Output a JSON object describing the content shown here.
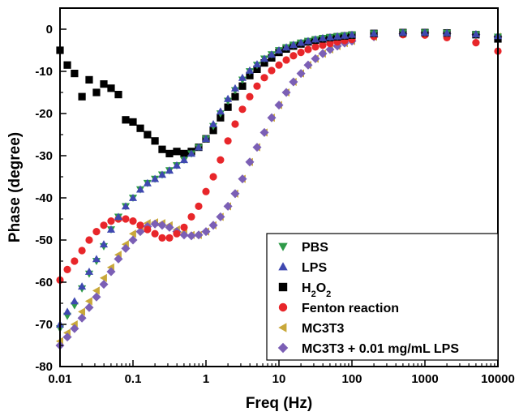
{
  "chart_data": {
    "type": "scatter",
    "title": "",
    "xlabel": "Freq (Hz)",
    "ylabel": "Phase (degree)",
    "x_scale": "log",
    "xlim": [
      0.01,
      10000
    ],
    "ylim": [
      -80,
      5
    ],
    "x_ticks": [
      "0.01",
      "0.1",
      "1",
      "10",
      "100",
      "1000",
      "10000"
    ],
    "y_ticks": [
      "0",
      "-10",
      "-20",
      "-30",
      "-40",
      "-50",
      "-60",
      "-70",
      "-80"
    ],
    "legend_position": "bottom-right",
    "grid": false,
    "series": [
      {
        "name": "PBS",
        "marker": "triangle-down",
        "color": "#2e9a48",
        "x": [
          0.01,
          0.0126,
          0.0158,
          0.02,
          0.0251,
          0.0316,
          0.0398,
          0.0501,
          0.0631,
          0.0794,
          0.1,
          0.126,
          0.158,
          0.2,
          0.251,
          0.316,
          0.398,
          0.501,
          0.631,
          0.794,
          1,
          1.26,
          1.58,
          2,
          2.51,
          3.16,
          3.98,
          5.01,
          6.31,
          7.94,
          10,
          12.6,
          15.8,
          20,
          25.1,
          31.6,
          39.8,
          50.1,
          63.1,
          79.4,
          100,
          200,
          500,
          1000,
          2000,
          5000,
          10000
        ],
        "y": [
          -71,
          -68,
          -65.5,
          -61.5,
          -58,
          -55,
          -51.5,
          -47.5,
          -44.5,
          -42,
          -40,
          -38,
          -36.5,
          -35.5,
          -34.5,
          -33.5,
          -32.3,
          -31,
          -29.5,
          -28,
          -26,
          -23,
          -20,
          -17,
          -14.5,
          -12,
          -10,
          -8.5,
          -7,
          -6,
          -5,
          -4.3,
          -3.7,
          -3.2,
          -2.8,
          -2.4,
          -2.1,
          -1.9,
          -1.7,
          -1.5,
          -1.3,
          -1,
          -0.8,
          -0.8,
          -0.9,
          -1.2,
          -1.8
        ]
      },
      {
        "name": "LPS",
        "marker": "triangle-up",
        "color": "#3f48b0",
        "x": [
          0.01,
          0.0126,
          0.0158,
          0.02,
          0.0251,
          0.0316,
          0.0398,
          0.0501,
          0.0631,
          0.0794,
          0.1,
          0.126,
          0.158,
          0.2,
          0.251,
          0.316,
          0.398,
          0.501,
          0.631,
          0.794,
          1,
          1.26,
          1.58,
          2,
          2.51,
          3.16,
          3.98,
          5.01,
          6.31,
          7.94,
          10,
          12.6,
          15.8,
          20,
          25.1,
          31.6,
          39.8,
          50.1,
          63.1,
          79.4,
          100,
          200,
          500,
          1000,
          2000,
          5000,
          10000
        ],
        "y": [
          -70,
          -67,
          -64.5,
          -61,
          -57.5,
          -54.5,
          -51,
          -47.5,
          -44.5,
          -42,
          -40,
          -38,
          -36.5,
          -35.5,
          -34.5,
          -33.5,
          -32.3,
          -31,
          -29.5,
          -28,
          -26,
          -22.5,
          -19.5,
          -16.5,
          -14,
          -11.5,
          -9.8,
          -8.3,
          -7,
          -6,
          -5,
          -4.3,
          -3.7,
          -3.2,
          -2.8,
          -2.4,
          -2.1,
          -1.9,
          -1.7,
          -1.5,
          -1.3,
          -1,
          -0.8,
          -0.8,
          -0.9,
          -1.2,
          -1.6
        ]
      },
      {
        "name": "H2O2",
        "marker": "square",
        "color": "#000000",
        "x": [
          0.01,
          0.0126,
          0.0158,
          0.02,
          0.0251,
          0.0316,
          0.0398,
          0.0501,
          0.0631,
          0.0794,
          0.1,
          0.126,
          0.158,
          0.2,
          0.251,
          0.316,
          0.398,
          0.501,
          0.631,
          0.794,
          1,
          1.26,
          1.58,
          2,
          2.51,
          3.16,
          3.98,
          5.01,
          6.31,
          7.94,
          10,
          12.6,
          15.8,
          20,
          25.1,
          31.6,
          39.8,
          50.1,
          63.1,
          79.4,
          100,
          200,
          500,
          1000,
          2000,
          5000,
          10000
        ],
        "y": [
          -5,
          -8.5,
          -10.5,
          -16,
          -12,
          -15,
          -13,
          -14,
          -15.5,
          -21.5,
          -22,
          -23.5,
          -25,
          -26.5,
          -28.5,
          -29.5,
          -29,
          -29.5,
          -29,
          -28,
          -26,
          -24,
          -21,
          -18.5,
          -16,
          -13.5,
          -11,
          -9.5,
          -8,
          -6.8,
          -5.5,
          -4.7,
          -4,
          -3.5,
          -3,
          -2.6,
          -2.3,
          -2,
          -1.8,
          -1.6,
          -1.4,
          -1,
          -0.8,
          -0.8,
          -0.9,
          -1.3,
          -2.3
        ]
      },
      {
        "name": "Fenton reaction",
        "marker": "circle",
        "color": "#e8262a",
        "x": [
          0.01,
          0.0126,
          0.0158,
          0.02,
          0.0251,
          0.0316,
          0.0398,
          0.0501,
          0.0631,
          0.0794,
          0.1,
          0.126,
          0.158,
          0.2,
          0.251,
          0.316,
          0.398,
          0.501,
          0.631,
          0.794,
          1,
          1.26,
          1.58,
          2,
          2.51,
          3.16,
          3.98,
          5.01,
          6.31,
          7.94,
          10,
          12.6,
          15.8,
          20,
          25.1,
          31.6,
          39.8,
          50.1,
          63.1,
          79.4,
          100,
          200,
          500,
          1000,
          2000,
          5000,
          10000
        ],
        "y": [
          -59.5,
          -57,
          -55,
          -52.5,
          -50,
          -48,
          -46.5,
          -45.5,
          -45,
          -45,
          -45.5,
          -46.5,
          -47.5,
          -48.5,
          -49.5,
          -49.5,
          -48.5,
          -47,
          -44.5,
          -42,
          -38.5,
          -35,
          -31,
          -26.5,
          -22.5,
          -19,
          -16,
          -13.5,
          -11.5,
          -9.8,
          -8.5,
          -7.3,
          -6.3,
          -5.5,
          -4.8,
          -4.2,
          -3.8,
          -3.4,
          -3,
          -2.7,
          -2.4,
          -1.7,
          -1.3,
          -1.4,
          -2,
          -3.2,
          -5.2
        ]
      },
      {
        "name": "MC3T3",
        "marker": "triangle-left",
        "color": "#c9a83a",
        "x": [
          0.01,
          0.0126,
          0.0158,
          0.02,
          0.0251,
          0.0316,
          0.0398,
          0.0501,
          0.0631,
          0.0794,
          0.1,
          0.126,
          0.158,
          0.2,
          0.251,
          0.316,
          0.398,
          0.501,
          0.631,
          0.794,
          1,
          1.26,
          1.58,
          2,
          2.51,
          3.16,
          3.98,
          5.01,
          6.31,
          7.94,
          10,
          12.6,
          15.8,
          20,
          25.1,
          31.6,
          39.8,
          50.1,
          63.1,
          79.4,
          100,
          200,
          500,
          1000,
          2000,
          5000,
          10000
        ],
        "y": [
          -74,
          -72,
          -70,
          -67,
          -64.5,
          -62,
          -59,
          -56.5,
          -53.5,
          -51,
          -48.5,
          -47,
          -46,
          -45.8,
          -46,
          -46.5,
          -47.5,
          -48.2,
          -48.8,
          -48.8,
          -48,
          -46.5,
          -44.5,
          -42,
          -39,
          -35.5,
          -31.5,
          -28,
          -24.5,
          -21,
          -18,
          -15,
          -12.5,
          -10.5,
          -8.5,
          -7,
          -5.8,
          -4.8,
          -4,
          -3.3,
          -2.8,
          -1.8,
          -1.1,
          -0.9,
          -1,
          -1.3,
          -1.8
        ]
      },
      {
        "name": "MC3T3 + 0.01 mg/mL LPS",
        "marker": "diamond",
        "color": "#7b5fb5",
        "x": [
          0.01,
          0.0126,
          0.0158,
          0.02,
          0.0251,
          0.0316,
          0.0398,
          0.0501,
          0.0631,
          0.0794,
          0.1,
          0.126,
          0.158,
          0.2,
          0.251,
          0.316,
          0.398,
          0.501,
          0.631,
          0.794,
          1,
          1.26,
          1.58,
          2,
          2.51,
          3.16,
          3.98,
          5.01,
          6.31,
          7.94,
          10,
          12.6,
          15.8,
          20,
          25.1,
          31.6,
          39.8,
          50.1,
          63.1,
          79.4,
          100,
          200,
          500,
          1000,
          2000,
          5000,
          10000
        ],
        "y": [
          -75,
          -73,
          -71,
          -68.5,
          -66,
          -63.5,
          -60.5,
          -57.5,
          -54.5,
          -52,
          -50,
          -48,
          -46.8,
          -46.2,
          -46.5,
          -47,
          -48,
          -48.8,
          -49,
          -48.8,
          -48,
          -46.5,
          -44.5,
          -42,
          -39,
          -35.5,
          -31.5,
          -28,
          -24.5,
          -21,
          -18,
          -15,
          -12.5,
          -10.5,
          -8.5,
          -7,
          -5.8,
          -4.8,
          -4,
          -3.3,
          -2.8,
          -1.8,
          -1.1,
          -0.9,
          -1,
          -1.3,
          -1.8
        ]
      }
    ]
  }
}
